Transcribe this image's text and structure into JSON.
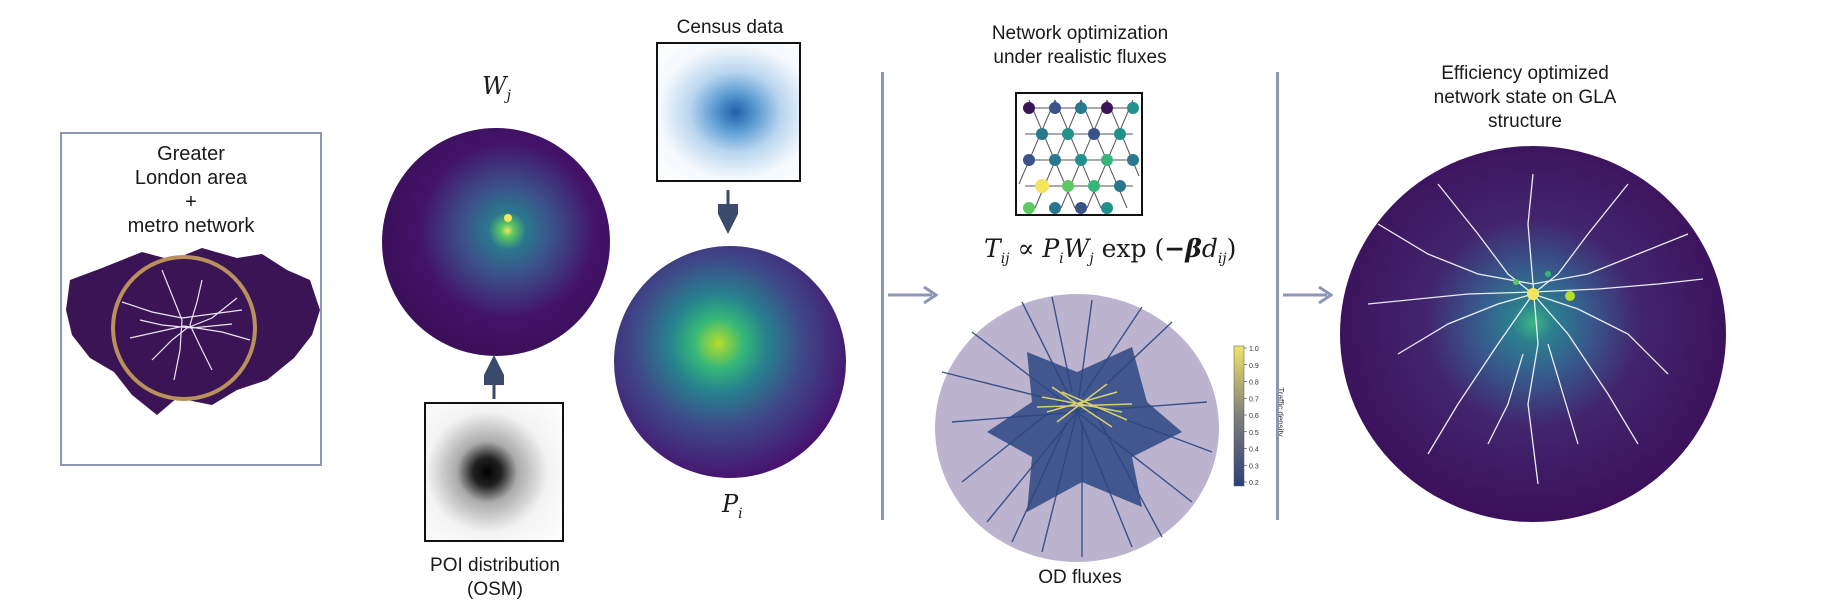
{
  "panels": {
    "gla": {
      "title_lines": [
        "Greater",
        "London area",
        "+",
        "metro network"
      ]
    },
    "wj": {
      "symbol": "W",
      "subscript": "j"
    },
    "pi": {
      "symbol": "P",
      "subscript": "i"
    },
    "census": {
      "title": "Census data"
    },
    "poi": {
      "title_lines": [
        "POI distribution",
        "(OSM)"
      ]
    },
    "optimization": {
      "title_lines": [
        "Network optimization",
        "under realistic fluxes"
      ],
      "formula": {
        "T": "T",
        "T_sub": "ij",
        "propto": " ∝ ",
        "P": "P",
        "P_sub": "i",
        "W": "W",
        "W_sub": "j",
        "exp": " exp ",
        "minus_beta": "−β",
        "d": "d",
        "d_sub": "ij"
      }
    },
    "od": {
      "title": "OD fluxes",
      "colorbar": {
        "label": "Traffic density",
        "ticks": [
          "1.0",
          "0.9",
          "0.8",
          "0.7",
          "0.6",
          "0.5",
          "0.4",
          "0.3",
          "0.2"
        ],
        "colors": [
          "#2c3f7a",
          "#f1e46a"
        ]
      }
    },
    "result": {
      "title_lines": [
        "Efficiency optimized",
        "network state on GLA",
        "structure"
      ]
    }
  },
  "colors": {
    "hex_dark": "#3b1456",
    "gla_circle": "#b8915c",
    "divider": "#8d96b5",
    "arrow": "#3a4a6a",
    "od_background": "#bcb3cf",
    "od_flux_low": "#2c4682",
    "od_flux_high": "#f1e46a"
  }
}
